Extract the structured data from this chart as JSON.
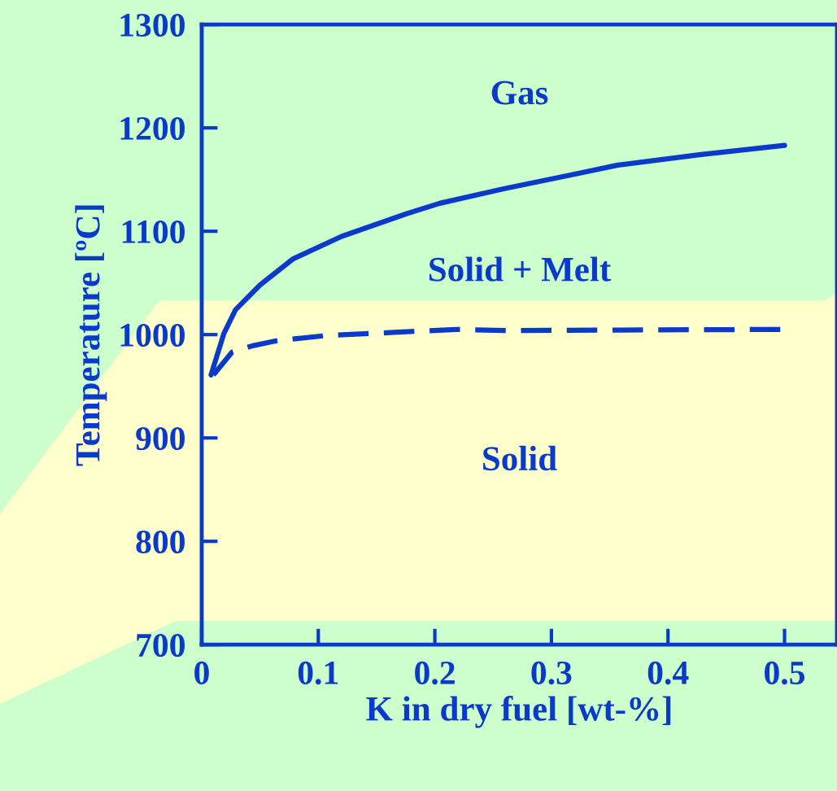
{
  "chart_data": {
    "type": "line",
    "xlabel": "K in dry fuel [wt-%]",
    "ylabel": "Temperature [ºC]",
    "xlim": [
      0,
      0.545
    ],
    "ylim": [
      700,
      1300
    ],
    "xticks": [
      0,
      0.1,
      0.2,
      0.3,
      0.4,
      0.5
    ],
    "yticks": [
      700,
      800,
      900,
      1000,
      1100,
      1200,
      1300
    ],
    "grid": false,
    "legend": false,
    "series": [
      {
        "color": "#0a3acc",
        "line_style": "solid",
        "x": [
          0.008,
          0.019,
          0.029,
          0.05,
          0.078,
          0.12,
          0.176,
          0.204,
          0.259,
          0.315,
          0.357,
          0.427,
          0.5
        ],
        "values": [
          961,
          1001,
          1024,
          1048,
          1073,
          1095,
          1117,
          1127,
          1141,
          1154,
          1164,
          1174,
          1183
        ]
      },
      {
        "color": "#0a3acc",
        "line_style": "dashed",
        "x": [
          0.01,
          0.026,
          0.043,
          0.064,
          0.106,
          0.162,
          0.218,
          0.26,
          0.5
        ],
        "values": [
          961,
          983,
          989,
          994,
          999,
          1002,
          1005,
          1004,
          1005
        ]
      }
    ],
    "annotations": [
      "Gas",
      "Solid + Melt",
      "Solid"
    ]
  }
}
